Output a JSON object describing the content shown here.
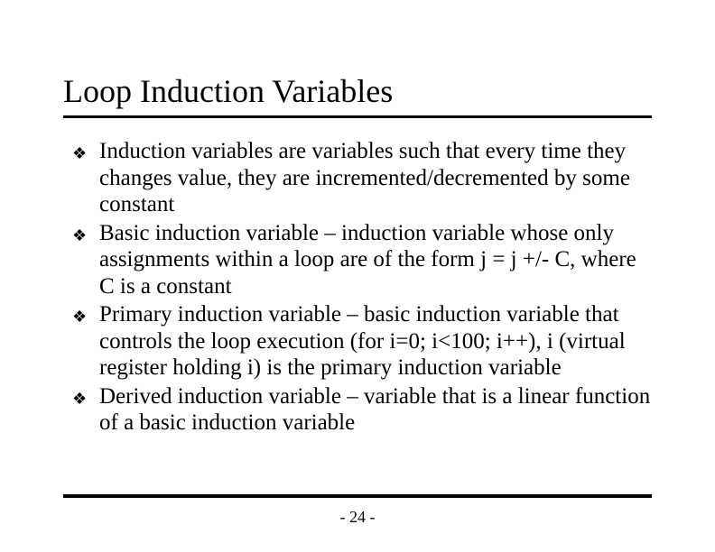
{
  "slide": {
    "title": "Loop Induction Variables",
    "bullet_glyph": "❖",
    "bullets": [
      "Induction variables are variables such that every time they changes value, they are incremented/decremented by some constant",
      "Basic induction variable – induction variable whose only assignments within a loop are of the form j = j +/- C, where C is a constant",
      "Primary induction variable – basic induction variable that controls the loop execution (for i=0; i<100; i++), i (virtual register holding i) is the primary induction variable",
      "Derived induction variable – variable that is a linear function of a basic induction variable"
    ],
    "page_number": "- 24 -"
  },
  "style": {
    "background_color": "#ffffff",
    "text_color": "#000000",
    "title_fontsize": 36,
    "body_fontsize": 25,
    "bullet_fontsize": 18,
    "pagenum_fontsize": 18,
    "rule_color": "#000000",
    "font_family": "Times New Roman"
  }
}
